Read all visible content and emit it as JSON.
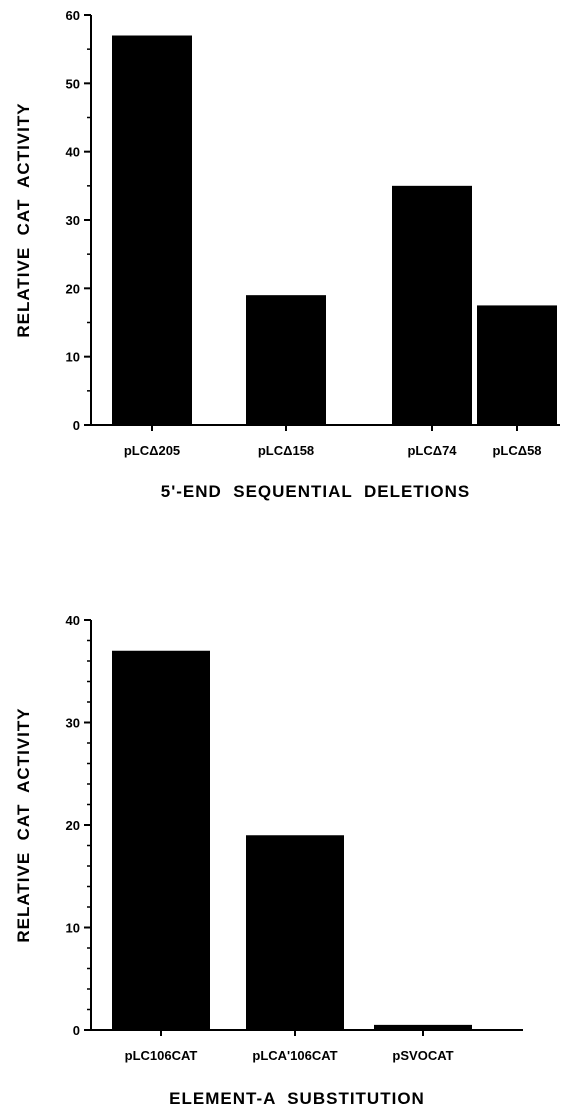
{
  "chart_data": [
    {
      "type": "bar",
      "categories": [
        "pLCΔ205",
        "pLCΔ158",
        "pLCΔ74",
        "pLCΔ58"
      ],
      "values": [
        57,
        19,
        35,
        17.5
      ],
      "title": "",
      "xlabel": "5'-END  SEQUENTIAL  DELETIONS",
      "ylabel": "RELATIVE  CAT  ACTIVITY",
      "ylim": [
        0,
        60
      ],
      "yticks": [
        0,
        10,
        20,
        30,
        40,
        50,
        60
      ],
      "bar_color": "#000000",
      "grid": false
    },
    {
      "type": "bar",
      "categories": [
        "pLC106CAT",
        "pLCA'106CAT",
        "pSVOCAT"
      ],
      "values": [
        37,
        19,
        0.5
      ],
      "title": "",
      "xlabel": "ELEMENT-A  SUBSTITUTION",
      "ylabel": "RELATIVE  CAT  ACTIVITY",
      "ylim": [
        0,
        40
      ],
      "yticks": [
        0,
        10,
        20,
        30,
        40
      ],
      "bar_color": "#000000",
      "grid": false
    }
  ]
}
